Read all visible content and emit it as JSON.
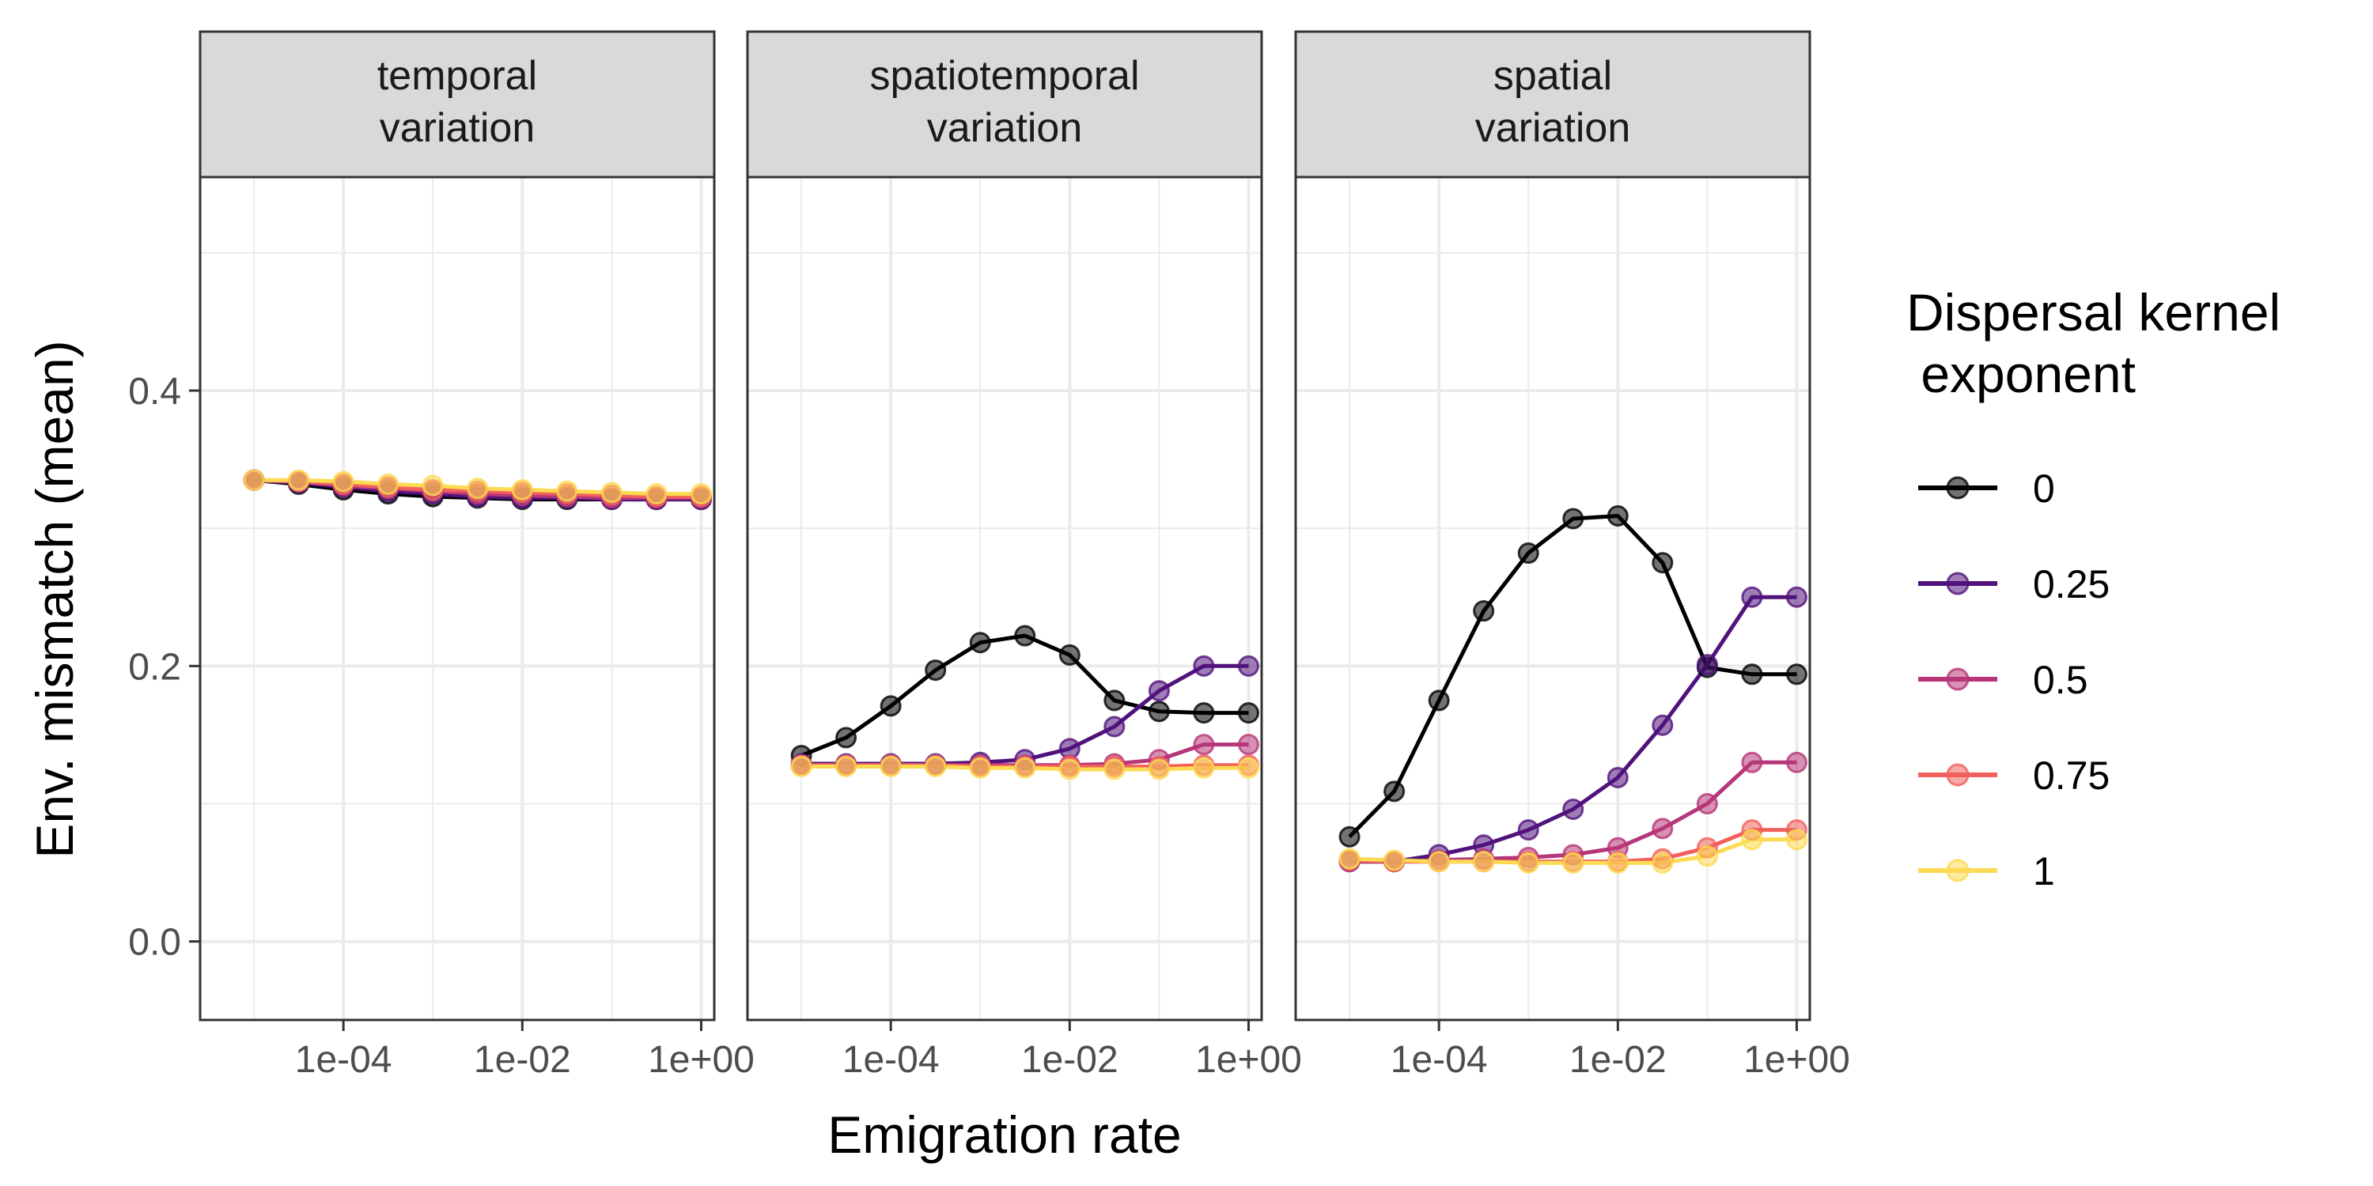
{
  "chart_data": {
    "type": "line",
    "xlabel": "Emigration rate",
    "ylabel": "Env. mismatch (mean)",
    "x_scale": "log10",
    "xlim": [
      2.5e-06,
      1.4
    ],
    "ylim": [
      -0.057,
      0.555
    ],
    "x_ticks": [
      0.0001,
      0.01,
      1
    ],
    "x_tick_labels": [
      "1e-04",
      "1e-02",
      "1e+00"
    ],
    "y_ticks": [
      0.0,
      0.2,
      0.4
    ],
    "y_tick_labels": [
      "0.0",
      "0.2",
      "0.4"
    ],
    "grid": true,
    "legend": {
      "title": [
        "Dispersal kernel",
        " exponent"
      ],
      "placement": "right",
      "entries": [
        {
          "label": "0",
          "color": "#000004"
        },
        {
          "label": "0.25",
          "color": "#51127C"
        },
        {
          "label": "0.5",
          "color": "#B63679"
        },
        {
          "label": "0.75",
          "color": "#F1605D"
        },
        {
          "label": "1",
          "color": "#FCDB52"
        }
      ]
    },
    "x": [
      1e-05,
      3.16e-05,
      0.0001,
      0.000316,
      0.001,
      0.00316,
      0.01,
      0.0316,
      0.1,
      0.316,
      1
    ],
    "panels": [
      {
        "title_lines": [
          "temporal",
          "variation"
        ],
        "series": [
          {
            "legend_index": 0,
            "values": [
              0.335,
              0.332,
              0.328,
              0.325,
              0.323,
              0.322,
              0.321,
              0.321,
              0.321,
              0.321,
              0.321
            ]
          },
          {
            "legend_index": 1,
            "values": [
              0.335,
              0.333,
              0.33,
              0.327,
              0.325,
              0.323,
              0.322,
              0.322,
              0.321,
              0.321,
              0.321
            ]
          },
          {
            "legend_index": 2,
            "values": [
              0.335,
              0.334,
              0.331,
              0.329,
              0.327,
              0.325,
              0.324,
              0.323,
              0.322,
              0.322,
              0.322
            ]
          },
          {
            "legend_index": 3,
            "values": [
              0.335,
              0.334,
              0.332,
              0.33,
              0.328,
              0.327,
              0.326,
              0.325,
              0.324,
              0.323,
              0.323
            ]
          },
          {
            "legend_index": 4,
            "values": [
              0.335,
              0.335,
              0.334,
              0.332,
              0.331,
              0.329,
              0.328,
              0.327,
              0.326,
              0.325,
              0.325
            ]
          }
        ]
      },
      {
        "title_lines": [
          "spatiotemporal",
          "variation"
        ],
        "series": [
          {
            "legend_index": 0,
            "values": [
              0.135,
              0.148,
              0.171,
              0.197,
              0.217,
              0.222,
              0.208,
              0.175,
              0.167,
              0.166,
              0.166
            ]
          },
          {
            "legend_index": 1,
            "values": [
              0.129,
              0.129,
              0.129,
              0.129,
              0.13,
              0.132,
              0.14,
              0.156,
              0.182,
              0.2,
              0.2
            ]
          },
          {
            "legend_index": 2,
            "values": [
              0.128,
              0.128,
              0.128,
              0.128,
              0.128,
              0.128,
              0.128,
              0.129,
              0.132,
              0.143,
              0.143
            ]
          },
          {
            "legend_index": 3,
            "values": [
              0.128,
              0.128,
              0.128,
              0.128,
              0.127,
              0.127,
              0.127,
              0.127,
              0.127,
              0.128,
              0.128
            ]
          },
          {
            "legend_index": 4,
            "values": [
              0.127,
              0.127,
              0.127,
              0.127,
              0.126,
              0.126,
              0.125,
              0.125,
              0.125,
              0.126,
              0.126
            ]
          }
        ]
      },
      {
        "title_lines": [
          "spatial",
          "variation"
        ],
        "series": [
          {
            "legend_index": 0,
            "values": [
              0.076,
              0.109,
              0.175,
              0.24,
              0.282,
              0.307,
              0.309,
              0.275,
              0.199,
              0.194,
              0.194
            ]
          },
          {
            "legend_index": 1,
            "values": [
              0.058,
              0.058,
              0.063,
              0.07,
              0.081,
              0.096,
              0.119,
              0.157,
              0.201,
              0.25,
              0.25
            ]
          },
          {
            "legend_index": 2,
            "values": [
              0.058,
              0.058,
              0.059,
              0.06,
              0.061,
              0.063,
              0.068,
              0.082,
              0.1,
              0.13,
              0.13
            ]
          },
          {
            "legend_index": 3,
            "values": [
              0.059,
              0.058,
              0.058,
              0.058,
              0.058,
              0.058,
              0.058,
              0.06,
              0.068,
              0.081,
              0.081
            ]
          },
          {
            "legend_index": 4,
            "values": [
              0.06,
              0.059,
              0.058,
              0.058,
              0.057,
              0.057,
              0.057,
              0.057,
              0.062,
              0.074,
              0.074
            ]
          }
        ]
      }
    ]
  }
}
